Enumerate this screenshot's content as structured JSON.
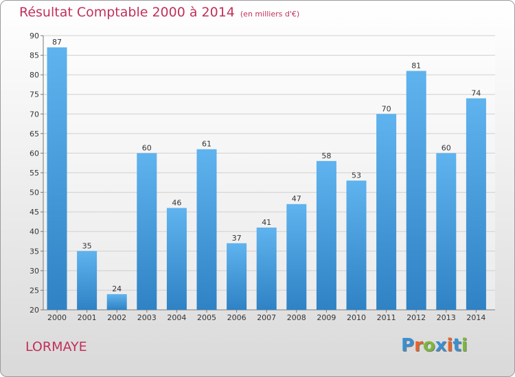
{
  "title": "Résultat Comptable 2000 à 2014",
  "subtitle": "(en milliers d'€)",
  "commune": "LORMAYE",
  "logo": {
    "text": "Proxiti",
    "colors": [
      "#3a8fd0",
      "#e8632a",
      "#7bb83a",
      "#3a8fd0",
      "#e8632a",
      "#3a8fd0",
      "#7bb83a"
    ]
  },
  "chart_data": {
    "type": "bar",
    "categories": [
      "2000",
      "2001",
      "2002",
      "2003",
      "2004",
      "2005",
      "2006",
      "2007",
      "2008",
      "2009",
      "2010",
      "2011",
      "2012",
      "2013",
      "2014"
    ],
    "values": [
      87,
      35,
      24,
      60,
      46,
      61,
      37,
      41,
      47,
      58,
      53,
      70,
      81,
      60,
      74
    ],
    "ylim": [
      20,
      90
    ],
    "yticks": [
      20,
      25,
      30,
      35,
      40,
      45,
      50,
      55,
      60,
      65,
      70,
      75,
      80,
      85,
      90
    ],
    "bar_color": "#4aa3e2",
    "grid": true
  }
}
